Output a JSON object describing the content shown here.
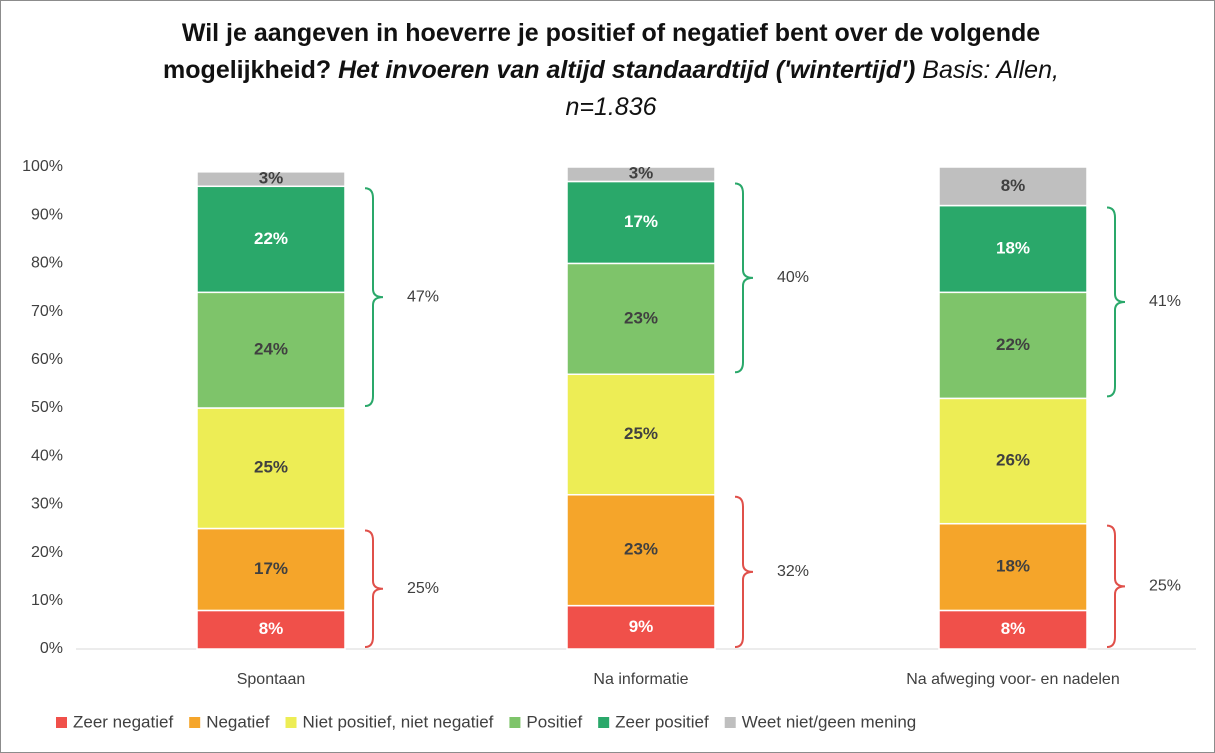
{
  "chart_data": {
    "type": "stacked_bar",
    "title": {
      "question": "Wil je aangeven in hoeverre je positief of negatief bent over de volgende mogelijkheid?",
      "subject": "Het invoeren van altijd standaardtijd ('wintertijd')",
      "basis": "Basis: Allen, n=1.836"
    },
    "categories": [
      "Spontaan",
      "Na informatie",
      "Na afweging voor- en nadelen"
    ],
    "series": [
      {
        "name": "Zeer negatief",
        "color": "#f0504a",
        "label_color": "#ffffff",
        "values": [
          8,
          9,
          8
        ],
        "value_labels": [
          "8%",
          "9%",
          "8%"
        ]
      },
      {
        "name": "Negatief",
        "color": "#f5a52a",
        "label_color": "#404040",
        "values": [
          17,
          23,
          18
        ],
        "value_labels": [
          "17%",
          "23%",
          "18%"
        ]
      },
      {
        "name": "Niet positief, niet negatief",
        "color": "#eded55",
        "label_color": "#404040",
        "values": [
          25,
          25,
          26
        ],
        "value_labels": [
          "25%",
          "25%",
          "26%"
        ]
      },
      {
        "name": "Positief",
        "color": "#7ec46a",
        "label_color": "#404040",
        "values": [
          24,
          23,
          22
        ],
        "value_labels": [
          "24%",
          "23%",
          "22%"
        ]
      },
      {
        "name": "Zeer positief",
        "color": "#2aa86a",
        "label_color": "#ffffff",
        "values": [
          22,
          17,
          18
        ],
        "value_labels": [
          "22%",
          "17%",
          "18%"
        ]
      },
      {
        "name": "Weet niet/geen mening",
        "color": "#bfbfbf",
        "label_color": "#404040",
        "values": [
          3,
          3,
          8
        ],
        "value_labels": [
          "3%",
          "3%",
          "8%"
        ]
      }
    ],
    "annotations": {
      "negative": {
        "color": "#e0504a",
        "values": [
          25,
          32,
          25
        ],
        "value_labels": [
          "25%",
          "32%",
          "25%"
        ]
      },
      "positive": {
        "color": "#2aa86a",
        "values": [
          47,
          40,
          41
        ],
        "value_labels": [
          "47%",
          "40%",
          "41%"
        ]
      }
    },
    "ylim": [
      0,
      100
    ],
    "yticks": [
      {
        "value": 0,
        "label": "0%"
      },
      {
        "value": 10,
        "label": "10%"
      },
      {
        "value": 20,
        "label": "20%"
      },
      {
        "value": 30,
        "label": "30%"
      },
      {
        "value": 40,
        "label": "40%"
      },
      {
        "value": 50,
        "label": "50%"
      },
      {
        "value": 60,
        "label": "60%"
      },
      {
        "value": 70,
        "label": "70%"
      },
      {
        "value": 80,
        "label": "80%"
      },
      {
        "value": 90,
        "label": "90%"
      },
      {
        "value": 100,
        "label": "100%"
      }
    ],
    "legend": "bottom"
  }
}
